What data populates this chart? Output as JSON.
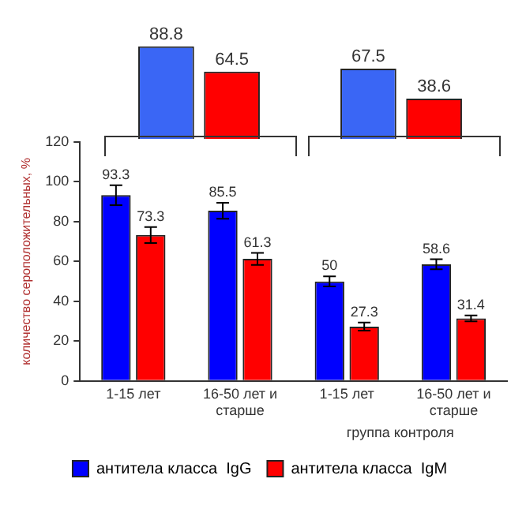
{
  "chart_data": [
    {
      "type": "bar",
      "categories": [
        null,
        null
      ],
      "data_labels": true,
      "tick_labels": false,
      "series": [
        {
          "color": "#3a66f5",
          "values": [
            88.8,
            67.5
          ]
        },
        {
          "color": "#ff0000",
          "values": [
            64.5,
            38.6
          ]
        }
      ]
    },
    {
      "type": "bar",
      "categories": [
        "1-15 лет",
        "16-50 лет и старше",
        "1-15 лет",
        "16-50 лет и старше"
      ],
      "ylabel": "количество сероположительных, %",
      "ylim": [
        0,
        120
      ],
      "yticks": [
        0,
        20,
        40,
        60,
        80,
        100,
        120
      ],
      "grid": false,
      "legend": "bottom",
      "data_labels": true,
      "annotations": [
        "группа контроля"
      ],
      "series": [
        {
          "name": "антитела класса  IgG",
          "color": "#0000ff",
          "values": [
            93.3,
            85.5,
            50,
            58.6
          ],
          "errors": [
            5,
            4,
            2.5,
            2.5
          ]
        },
        {
          "name": "антитела класса  IgM",
          "color": "#ff0000",
          "values": [
            73.3,
            61.3,
            27.3,
            31.4
          ],
          "errors": [
            4,
            3,
            2,
            1.5
          ]
        }
      ]
    }
  ]
}
